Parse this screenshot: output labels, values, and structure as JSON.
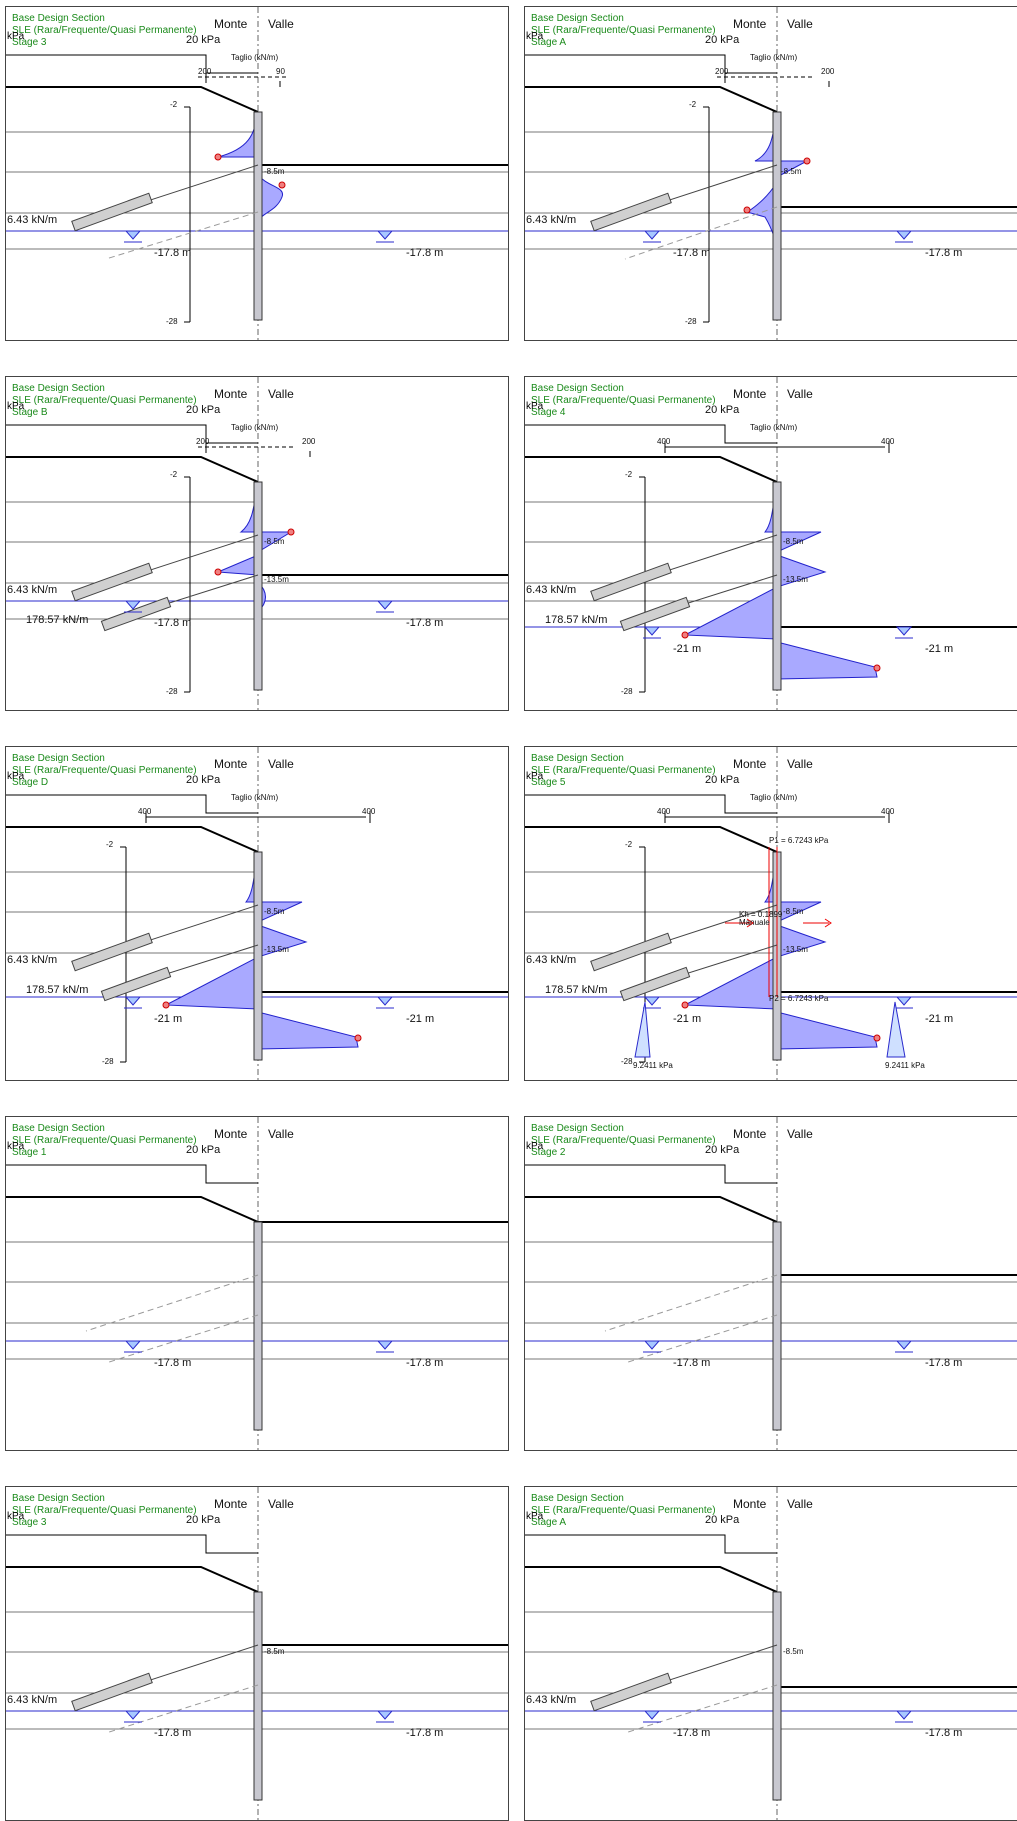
{
  "common": {
    "section": "Base Design Section",
    "combination": "SLE (Rara/Frequente/Quasi Permanente)",
    "kpa": "kPa",
    "monte": "Monte",
    "valle": "Valle",
    "surcharge": "20 kPa",
    "chart_title": "Taglio (kN/m)",
    "depth_top": "-2",
    "depth_bottom": "-28",
    "water_level": "-17.8 m",
    "water_level_21": "-21 m",
    "anchor1_force": "6.43 kN/m",
    "anchor2_force": "178.57 kN/m",
    "depth_85": "-8.5m",
    "depth_135": "-13.5m"
  },
  "panels": [
    {
      "stage": "Stage 3",
      "scale_left": "200",
      "scale_right": "90"
    },
    {
      "stage": "Stage A",
      "scale_left": "200",
      "scale_right": "200"
    },
    {
      "stage": "Stage B",
      "scale_left": "200",
      "scale_right": "200"
    },
    {
      "stage": "Stage 4",
      "scale_left": "400",
      "scale_right": "400"
    },
    {
      "stage": "Stage D",
      "scale_left": "400",
      "scale_right": "400"
    },
    {
      "stage": "Stage 5",
      "scale_left": "400",
      "scale_right": "400",
      "p1": "P1 = 6.7243 kPa",
      "p2": "P2 = 6.7243 kPa",
      "kh": "Kh = 0.1899",
      "kh_mode": "Manuale",
      "pressure": "9.2411 kPa"
    },
    {
      "stage": "Stage 1"
    },
    {
      "stage": "Stage 2"
    },
    {
      "stage": "Stage 3"
    },
    {
      "stage": "Stage A"
    }
  ]
}
